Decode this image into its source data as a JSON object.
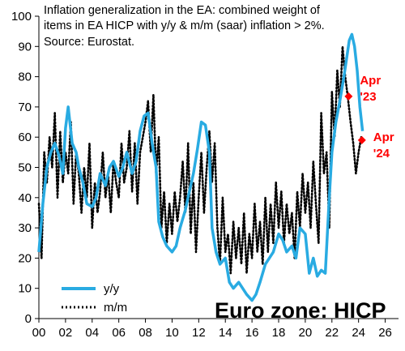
{
  "chart_data": {
    "type": "line",
    "title_lines": [
      "Inflation generalization in the EA: combined weight of",
      "items in EA HICP with y/y & m/m (saar) inflation > 2%.",
      "Source: Eurostat."
    ],
    "watermark": "Euro zone: HICP",
    "xlabel": "",
    "ylabel": "",
    "xlim": [
      0,
      27
    ],
    "ylim": [
      0,
      100
    ],
    "x_ticks": [
      0,
      2,
      4,
      6,
      8,
      10,
      12,
      14,
      16,
      18,
      20,
      22,
      24,
      26
    ],
    "x_tick_labels": [
      "00",
      "02",
      "04",
      "06",
      "08",
      "10",
      "12",
      "14",
      "16",
      "18",
      "20",
      "22",
      "24",
      "26"
    ],
    "y_ticks": [
      0,
      10,
      20,
      30,
      40,
      50,
      60,
      70,
      80,
      90,
      100
    ],
    "y_tick_labels": [
      "0",
      "10",
      "20",
      "30",
      "40",
      "50",
      "60",
      "70",
      "80",
      "90",
      "100"
    ],
    "grid": false,
    "legend_position": "bottom-left",
    "colors": {
      "yy": "#29abe2",
      "mm": "#000000",
      "annotation": "#ff0000"
    },
    "series": [
      {
        "name": "y/y",
        "style": "solid",
        "x": [
          0,
          0.3,
          0.6,
          0.9,
          1.2,
          1.5,
          1.8,
          2.0,
          2.2,
          2.5,
          2.8,
          3.0,
          3.3,
          3.6,
          4.0,
          4.3,
          4.6,
          5.0,
          5.3,
          5.6,
          6.0,
          6.3,
          6.6,
          7.0,
          7.3,
          7.6,
          7.9,
          8.2,
          8.5,
          8.8,
          9.0,
          9.3,
          9.6,
          10.0,
          10.3,
          10.6,
          11.0,
          11.3,
          11.6,
          11.9,
          12.2,
          12.5,
          12.8,
          13.0,
          13.3,
          13.6,
          14.0,
          14.3,
          14.6,
          15.0,
          15.3,
          15.6,
          16.0,
          16.3,
          16.6,
          17.0,
          17.3,
          17.6,
          18.0,
          18.3,
          18.6,
          19.0,
          19.3,
          19.6,
          20.0,
          20.3,
          20.6,
          20.9,
          21.2,
          21.5,
          21.8,
          22.0,
          22.3,
          22.6,
          22.9,
          23.1,
          23.3,
          23.5,
          23.7,
          23.9,
          24.1,
          24.3
        ],
        "values": [
          22,
          38,
          50,
          55,
          58,
          54,
          48,
          63,
          70,
          58,
          55,
          50,
          45,
          38,
          37,
          40,
          48,
          44,
          50,
          52,
          47,
          50,
          55,
          48,
          52,
          62,
          67,
          68,
          58,
          50,
          32,
          27,
          24,
          22,
          24,
          30,
          36,
          42,
          48,
          56,
          65,
          64,
          55,
          30,
          22,
          18,
          20,
          12,
          10,
          12,
          10,
          8,
          6,
          8,
          12,
          18,
          20,
          22,
          28,
          26,
          22,
          24,
          20,
          30,
          28,
          15,
          20,
          14,
          16,
          15,
          40,
          55,
          65,
          72,
          80,
          86,
          92,
          94,
          90,
          82,
          70,
          62
        ]
      },
      {
        "name": "m/m",
        "style": "dotted",
        "x": [
          0,
          0.2,
          0.4,
          0.6,
          0.8,
          1.0,
          1.2,
          1.4,
          1.6,
          1.8,
          2.0,
          2.2,
          2.4,
          2.6,
          2.8,
          3.0,
          3.2,
          3.4,
          3.6,
          3.8,
          4.0,
          4.2,
          4.4,
          4.6,
          4.8,
          5.0,
          5.2,
          5.4,
          5.6,
          5.8,
          6.0,
          6.2,
          6.4,
          6.6,
          6.8,
          7.0,
          7.2,
          7.4,
          7.6,
          7.8,
          8.0,
          8.2,
          8.4,
          8.6,
          8.8,
          9.0,
          9.2,
          9.4,
          9.6,
          9.8,
          10.0,
          10.2,
          10.4,
          10.6,
          10.8,
          11.0,
          11.2,
          11.4,
          11.6,
          11.8,
          12.0,
          12.2,
          12.4,
          12.6,
          12.8,
          13.0,
          13.2,
          13.4,
          13.6,
          13.8,
          14.0,
          14.2,
          14.4,
          14.6,
          14.8,
          15.0,
          15.2,
          15.4,
          15.6,
          15.8,
          16.0,
          16.2,
          16.4,
          16.6,
          16.8,
          17.0,
          17.2,
          17.4,
          17.6,
          17.8,
          18.0,
          18.2,
          18.4,
          18.6,
          18.8,
          19.0,
          19.2,
          19.4,
          19.6,
          19.8,
          20.0,
          20.2,
          20.4,
          20.6,
          20.8,
          21.0,
          21.2,
          21.4,
          21.6,
          21.8,
          22.0,
          22.2,
          22.4,
          22.6,
          22.8,
          23.0,
          23.2,
          23.4,
          23.6,
          23.8,
          24.0,
          24.2
        ],
        "values": [
          38,
          20,
          55,
          45,
          60,
          50,
          68,
          40,
          62,
          45,
          55,
          48,
          65,
          38,
          55,
          48,
          35,
          50,
          40,
          58,
          30,
          45,
          35,
          42,
          55,
          40,
          48,
          35,
          52,
          45,
          40,
          58,
          45,
          50,
          62,
          42,
          58,
          38,
          55,
          60,
          65,
          72,
          55,
          74,
          48,
          60,
          30,
          42,
          25,
          38,
          28,
          42,
          32,
          40,
          52,
          35,
          58,
          28,
          45,
          22,
          40,
          55,
          35,
          50,
          62,
          45,
          58,
          30,
          18,
          40,
          22,
          28,
          15,
          32,
          20,
          30,
          18,
          35,
          15,
          28,
          20,
          38,
          22,
          32,
          18,
          40,
          22,
          38,
          25,
          45,
          30,
          42,
          25,
          38,
          28,
          35,
          20,
          42,
          30,
          48,
          35,
          45,
          30,
          52,
          38,
          25,
          68,
          48,
          55,
          30,
          75,
          60,
          82,
          70,
          90,
          80,
          73,
          65,
          58,
          48,
          55,
          60
        ]
      }
    ],
    "annotations": [
      {
        "label_lines": [
          "Apr",
          "'23"
        ],
        "x": 23.25,
        "y": 73.5
      },
      {
        "label_lines": [
          "Apr",
          "'24"
        ],
        "x": 24.25,
        "y": 59
      }
    ]
  }
}
